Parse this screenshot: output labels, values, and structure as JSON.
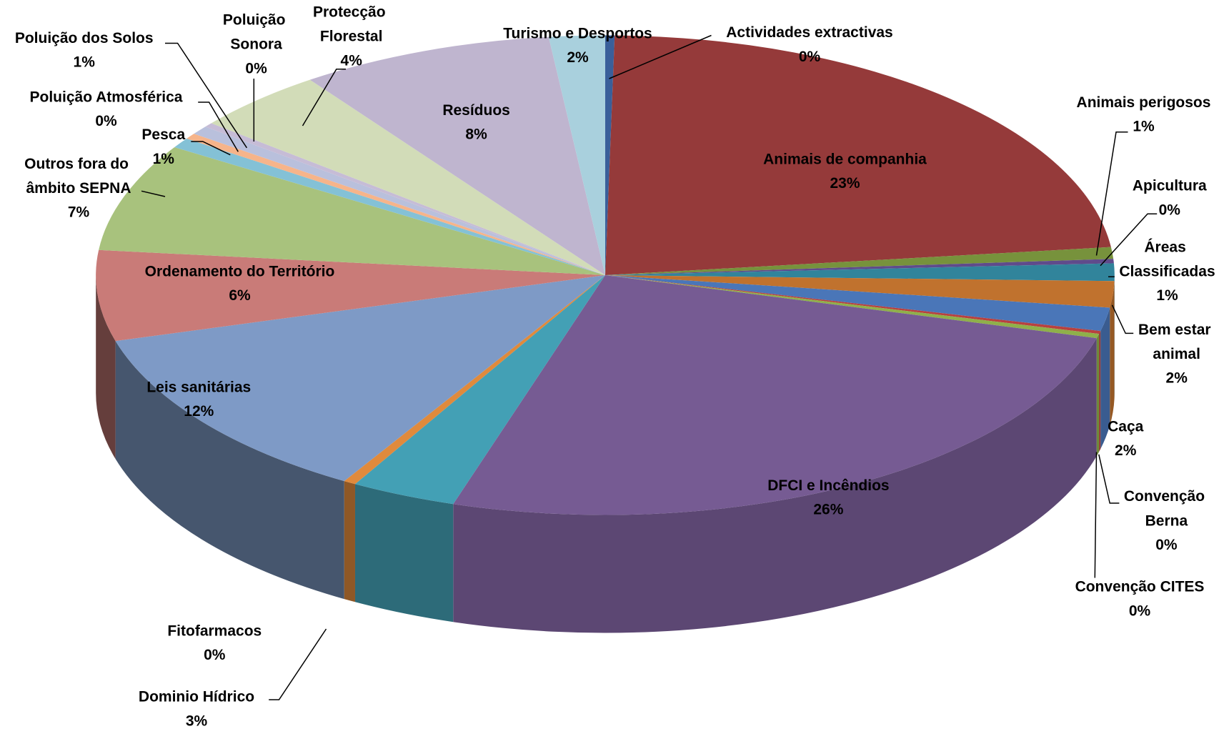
{
  "chart_data": {
    "type": "pie3d",
    "categories": [
      "Actividades extractivas",
      "Animais de companhia",
      "Animais perigosos",
      "Apicultura",
      "Áreas Classificadas",
      "Bem estar animal",
      "Caça",
      "Convenção Berna",
      "Convenção CITES",
      "DFCI e Incêndios",
      "Dominio Hídrico",
      "Fitofarmacos",
      "Leis sanitárias",
      "Ordenamento do Território",
      "Outros fora do âmbito SEPNA",
      "Pesca",
      "Poluição Atmosférica",
      "Poluição dos Solos",
      "Poluição Sonora",
      "Protecção Florestal",
      "Resíduos",
      "Turismo e Desportos"
    ],
    "values": [
      0.3,
      23.2,
      0.8,
      0.3,
      1.2,
      1.8,
      1.6,
      0.2,
      0.3,
      26.0,
      3.4,
      0.4,
      12.2,
      6.2,
      7.4,
      0.7,
      0.4,
      0.6,
      0.3,
      4.3,
      8.2,
      1.8
    ],
    "value_labels": [
      "0%",
      "23%",
      "1%",
      "0%",
      "1%",
      "2%",
      "2%",
      "0%",
      "0%",
      "26%",
      "3%",
      "0%",
      "12%",
      "6%",
      "7%",
      "1%",
      "0%",
      "1%",
      "0%",
      "4%",
      "8%",
      "2%"
    ],
    "colors": [
      "#3a5f9a",
      "#953a3a",
      "#77923c",
      "#5f4b8b",
      "#31849b",
      "#c0722e",
      "#4a76b8",
      "#b8413f",
      "#8fb04a",
      "#765b93",
      "#43a0b5",
      "#e08a3c",
      "#7e9ac6",
      "#c97b78",
      "#a8c27d",
      "#84c1d6",
      "#f6b48a",
      "#b9c0dc",
      "#c6bcd6",
      "#d2dcb8",
      "#bfb5cf",
      "#a9d0dd"
    ]
  }
}
